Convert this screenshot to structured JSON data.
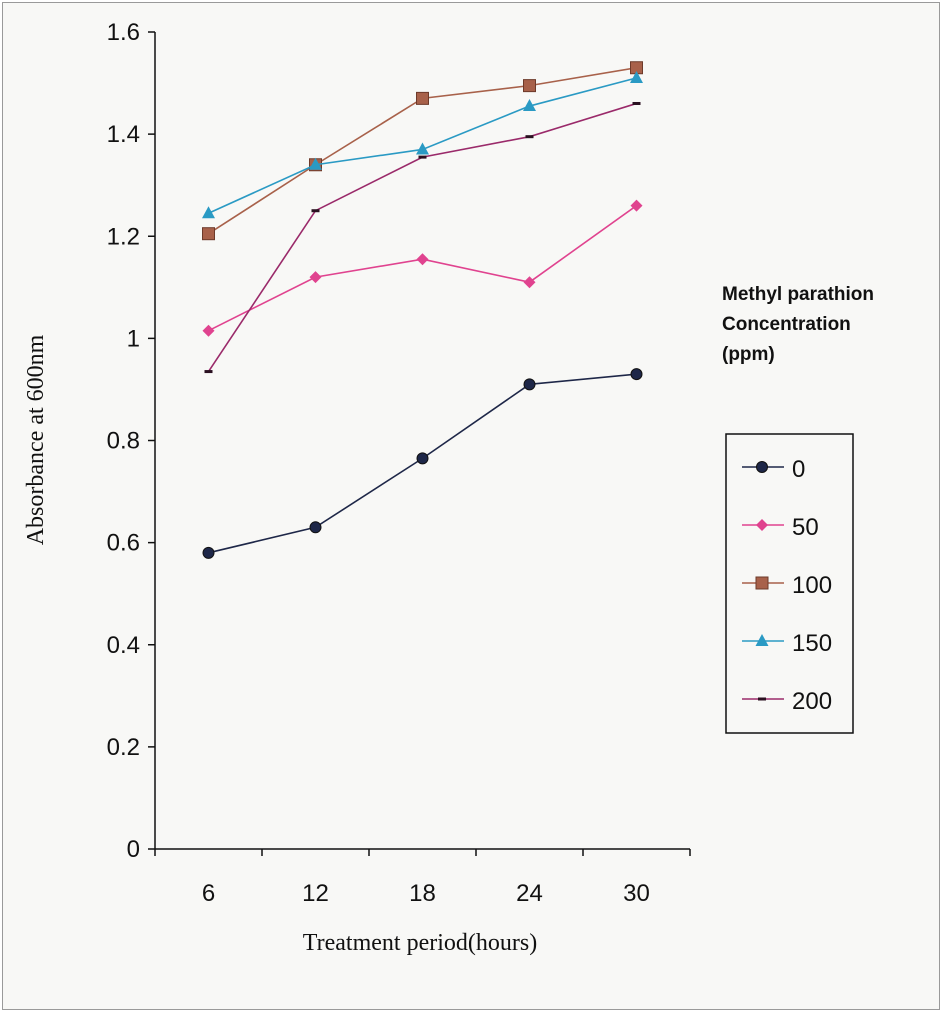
{
  "chart_data": {
    "type": "line",
    "title": "",
    "xlabel": "Treatment period(hours)",
    "ylabel": "Absorbance at 600nm",
    "categories": [
      "6",
      "12",
      "18",
      "24",
      "30"
    ],
    "ylim": [
      0,
      1.6
    ],
    "yticks": [
      "0",
      "0.2",
      "0.4",
      "0.6",
      "0.8",
      "1",
      "1.2",
      "1.4",
      "1.6"
    ],
    "grid": false,
    "legend_placement": "right",
    "legend_title": [
      "Methyl parathion",
      "Concentration",
      "(ppm)"
    ],
    "series": [
      {
        "name": "0",
        "color": "#1e2748",
        "marker": "circle",
        "values": [
          0.58,
          0.63,
          0.765,
          0.91,
          0.93
        ]
      },
      {
        "name": "50",
        "color": "#e0438f",
        "marker": "diamond",
        "values": [
          1.015,
          1.12,
          1.155,
          1.11,
          1.26
        ]
      },
      {
        "name": "100",
        "color": "#a8614a",
        "marker": "square",
        "values": [
          1.205,
          1.34,
          1.47,
          1.495,
          1.53
        ]
      },
      {
        "name": "150",
        "color": "#2a9ac4",
        "marker": "triangle",
        "values": [
          1.245,
          1.34,
          1.37,
          1.455,
          1.51
        ]
      },
      {
        "name": "200",
        "color": "#9a2a6a",
        "marker": "dash",
        "values": [
          0.935,
          1.25,
          1.355,
          1.395,
          1.46
        ]
      }
    ]
  }
}
